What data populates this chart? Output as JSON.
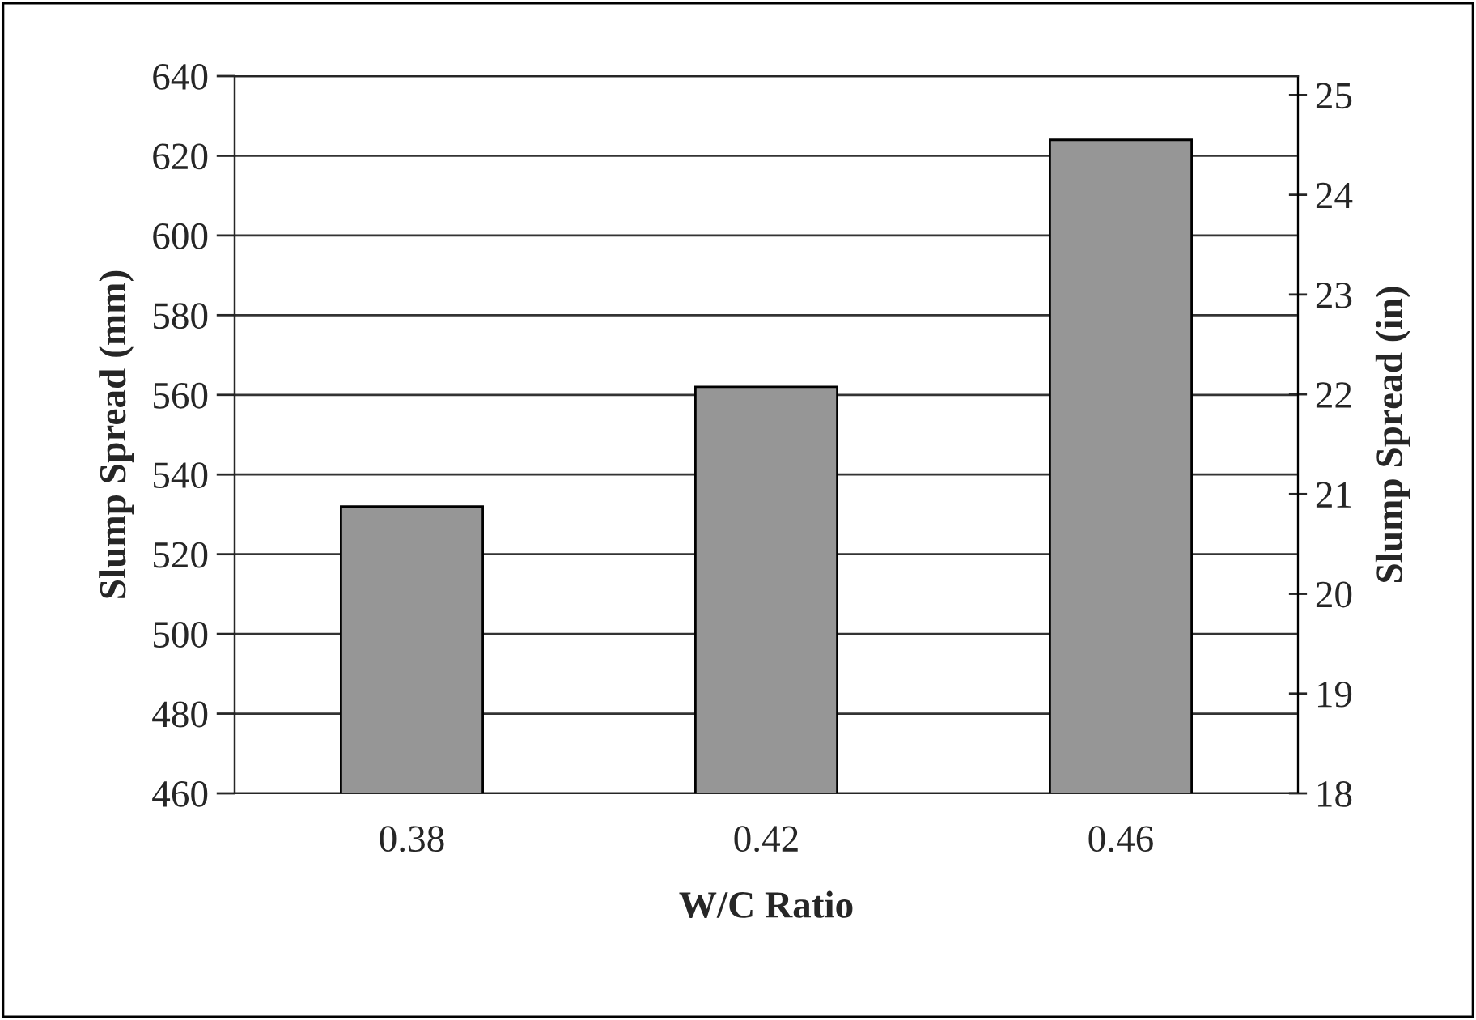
{
  "chart_data": {
    "type": "bar",
    "xlabel": "W/C Ratio",
    "ylabel": "Slump Spread (mm)",
    "y2label": "Slump Spread (in)",
    "categories": [
      "0.38",
      "0.42",
      "0.46"
    ],
    "values": [
      532,
      562,
      624
    ],
    "color": "#969696",
    "ylim": [
      460,
      640
    ],
    "yticks": [
      460,
      480,
      500,
      520,
      540,
      560,
      580,
      600,
      620,
      640
    ],
    "y2lim": [
      18,
      25.19
    ],
    "y2ticks": [
      18,
      19,
      20,
      21,
      22,
      23,
      24,
      25
    ],
    "grid": "y",
    "legend": false
  }
}
